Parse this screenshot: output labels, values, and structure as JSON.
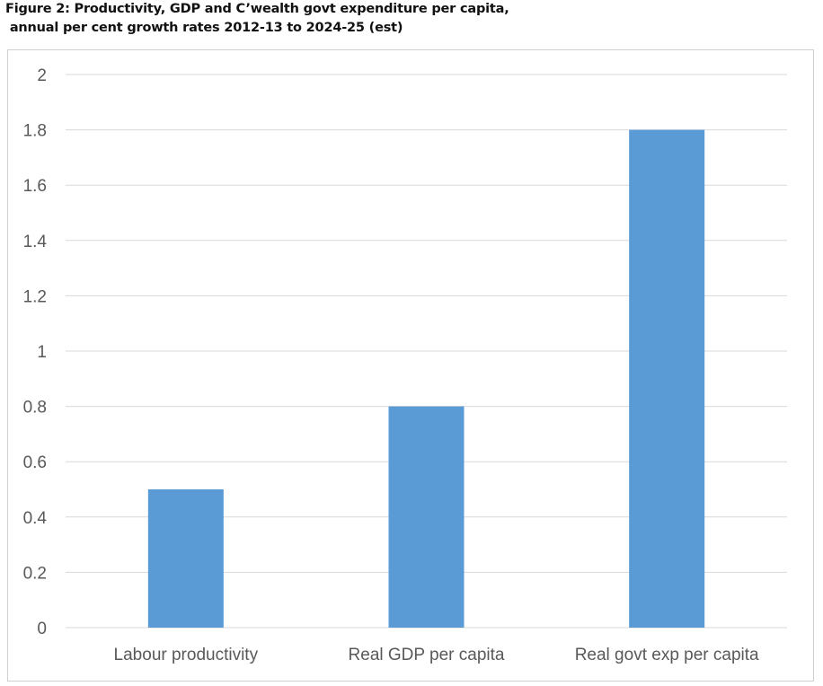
{
  "caption": {
    "line1": "Figure 2: Productivity, GDP and C’wealth govt expenditure per capita,",
    "line2": " annual per cent growth rates 2012-13 to 2024-25 (est)"
  },
  "colors": {
    "bar": "#5b9bd5",
    "grid": "#d9d9d9",
    "axis_text": "#595959",
    "frame": "#d0d0d0"
  },
  "chart_data": {
    "type": "bar",
    "title": "Figure 2: Productivity, GDP and C’wealth govt expenditure per capita, annual per cent growth rates 2012-13 to 2024-25 (est)",
    "categories": [
      "Labour productivity",
      "Real GDP per capita",
      "Real govt exp per capita"
    ],
    "values": [
      0.5,
      0.8,
      1.8
    ],
    "yticks": [
      "0",
      "0.2",
      "0.4",
      "0.6",
      "0.8",
      "1",
      "1.2",
      "1.4",
      "1.6",
      "1.8",
      "2"
    ],
    "ylim": [
      0,
      2
    ],
    "grid": true,
    "legend": "none"
  }
}
